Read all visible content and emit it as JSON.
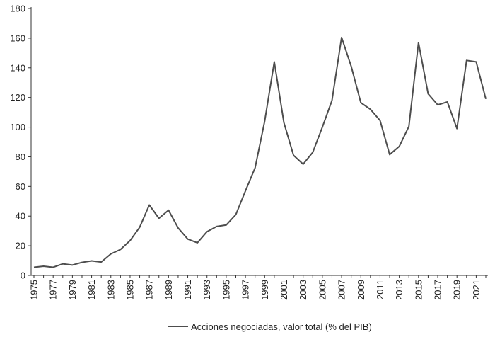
{
  "chart_data": {
    "type": "line",
    "title": "",
    "xlabel": "",
    "ylabel": "",
    "ylim": [
      0,
      180
    ],
    "yticks": [
      0,
      20,
      40,
      60,
      80,
      100,
      120,
      140,
      160,
      180
    ],
    "xticks": [
      1975,
      1977,
      1979,
      1981,
      1983,
      1985,
      1987,
      1989,
      1991,
      1993,
      1995,
      1997,
      1999,
      2001,
      2003,
      2005,
      2007,
      2009,
      2011,
      2013,
      2015,
      2017,
      2019,
      2021
    ],
    "grid": false,
    "legend_position": "bottom",
    "x": [
      1975,
      1976,
      1977,
      1978,
      1979,
      1980,
      1981,
      1982,
      1983,
      1984,
      1985,
      1986,
      1987,
      1988,
      1989,
      1990,
      1991,
      1992,
      1993,
      1994,
      1995,
      1996,
      1997,
      1998,
      1999,
      2000,
      2001,
      2002,
      2003,
      2004,
      2005,
      2006,
      2007,
      2008,
      2009,
      2010,
      2011,
      2012,
      2013,
      2014,
      2015,
      2016,
      2017,
      2018,
      2019,
      2020,
      2021,
      2022
    ],
    "series": [
      {
        "name": "Acciones negociadas, valor total (% del PIB)",
        "color": "#4d4d4d",
        "values": [
          5.5,
          6.2,
          5.5,
          7.8,
          7.0,
          8.8,
          9.8,
          9.0,
          14.5,
          17.5,
          23.5,
          32.5,
          47.5,
          38.5,
          44.0,
          32.0,
          24.5,
          22.0,
          29.5,
          33.0,
          34.0,
          41.0,
          57.0,
          72.5,
          104.0,
          144.0,
          103.0,
          81.0,
          75.0,
          83.0,
          100.0,
          118.0,
          160.5,
          141.0,
          116.5,
          112.0,
          104.5,
          81.5,
          87.0,
          100.5,
          157.0,
          122.5,
          115.0,
          117.0,
          99.0,
          145.0,
          144.0,
          119.0
        ]
      }
    ]
  }
}
